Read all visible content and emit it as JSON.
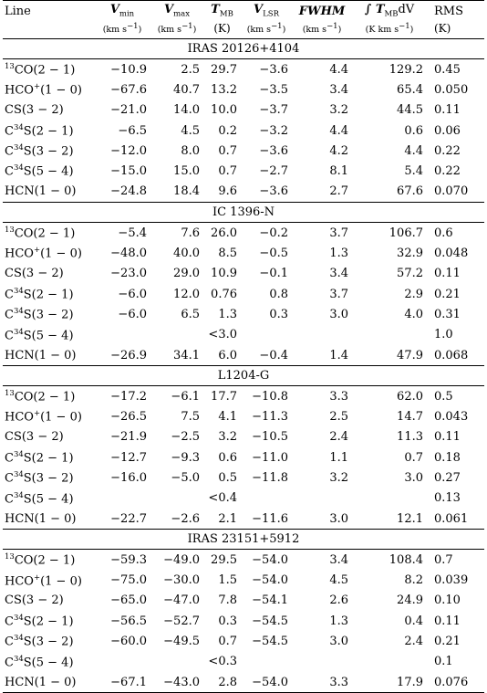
{
  "headers": {
    "line": "Line",
    "vmin_sym": "V",
    "vmin_sub": "min",
    "vmax_sym": "V",
    "vmax_sub": "max",
    "tmb_sym": "T",
    "tmb_sub": "MB",
    "vlsr_sym": "V",
    "vlsr_sub": "LSR",
    "fwhm": "FWHM",
    "integral": "∫ T",
    "integral_sub": "MB",
    "integral_tail": "dV",
    "rms": "RMS"
  },
  "units": {
    "vmin": "(km s",
    "vmax": "(km s",
    "tmb": "(K)",
    "vlsr": "(km s",
    "fwhm": "(km s",
    "integral": "(K km s",
    "rms": "(K)",
    "neg": "−1",
    "close": ")"
  },
  "groups": [
    {
      "name": "IRAS 20126+4104",
      "rows": [
        {
          "pre": "13",
          "mol": "CO(2 − 1)",
          "vmin": "−10.9",
          "vmax": "2.5",
          "tmb": "29.7",
          "vlsr": "−3.6",
          "fwhm": "4.4",
          "int": "129.2",
          "rms": "0.45"
        },
        {
          "pre": "",
          "mol": "HCO",
          "sup": "+",
          "tail": "(1 − 0)",
          "vmin": "−67.6",
          "vmax": "40.7",
          "tmb": "13.2",
          "vlsr": "−3.5",
          "fwhm": "3.4",
          "int": "65.4",
          "rms": "0.050"
        },
        {
          "pre": "",
          "mol": "CS(3 − 2)",
          "vmin": "−21.0",
          "vmax": "14.0",
          "tmb": "10.0",
          "vlsr": "−3.7",
          "fwhm": "3.2",
          "int": "44.5",
          "rms": "0.11"
        },
        {
          "pre": "",
          "mol": "C",
          "sup": "34",
          "tail": "S(2 − 1)",
          "vmin": "−6.5",
          "vmax": "4.5",
          "tmb": "0.2",
          "vlsr": "−3.2",
          "fwhm": "4.4",
          "int": "0.6",
          "rms": "0.06"
        },
        {
          "pre": "",
          "mol": "C",
          "sup": "34",
          "tail": "S(3 − 2)",
          "vmin": "−12.0",
          "vmax": "8.0",
          "tmb": "0.7",
          "vlsr": "−3.6",
          "fwhm": "4.2",
          "int": "4.4",
          "rms": "0.22"
        },
        {
          "pre": "",
          "mol": "C",
          "sup": "34",
          "tail": "S(5 − 4)",
          "vmin": "−15.0",
          "vmax": "15.0",
          "tmb": "0.7",
          "vlsr": "−2.7",
          "fwhm": "8.1",
          "int": "5.4",
          "rms": "0.22"
        },
        {
          "pre": "",
          "mol": "HCN(1 − 0)",
          "vmin": "−24.8",
          "vmax": "18.4",
          "tmb": "9.6",
          "vlsr": "−3.6",
          "fwhm": "2.7",
          "int": "67.6",
          "rms": "0.070"
        }
      ]
    },
    {
      "name": "IC 1396-N",
      "rows": [
        {
          "pre": "13",
          "mol": "CO(2 − 1)",
          "vmin": "−5.4",
          "vmax": "7.6",
          "tmb": "26.0",
          "vlsr": "−0.2",
          "fwhm": "3.7",
          "int": "106.7",
          "rms": "0.6"
        },
        {
          "pre": "",
          "mol": "HCO",
          "sup": "+",
          "tail": "(1 − 0)",
          "vmin": "−48.0",
          "vmax": "40.0",
          "tmb": "8.5",
          "vlsr": "−0.5",
          "fwhm": "1.3",
          "int": "32.9",
          "rms": "0.048"
        },
        {
          "pre": "",
          "mol": "CS(3 − 2)",
          "vmin": "−23.0",
          "vmax": "29.0",
          "tmb": "10.9",
          "vlsr": "−0.1",
          "fwhm": "3.4",
          "int": "57.2",
          "rms": "0.11"
        },
        {
          "pre": "",
          "mol": "C",
          "sup": "34",
          "tail": "S(2 − 1)",
          "vmin": "−6.0",
          "vmax": "12.0",
          "tmb": "0.76",
          "vlsr": "0.8",
          "fwhm": "3.7",
          "int": "2.9",
          "rms": "0.21"
        },
        {
          "pre": "",
          "mol": "C",
          "sup": "34",
          "tail": "S(3 − 2)",
          "vmin": "−6.0",
          "vmax": "6.5",
          "tmb": "1.3",
          "vlsr": "0.3",
          "fwhm": "3.0",
          "int": "4.0",
          "rms": "0.31"
        },
        {
          "pre": "",
          "mol": "C",
          "sup": "34",
          "tail": "S(5 − 4)",
          "vmin": "",
          "vmax": "",
          "tmb": "<3.0",
          "vlsr": "",
          "fwhm": "",
          "int": "",
          "rms": "1.0"
        },
        {
          "pre": "",
          "mol": "HCN(1 − 0)",
          "vmin": "−26.9",
          "vmax": "34.1",
          "tmb": "6.0",
          "vlsr": "−0.4",
          "fwhm": "1.4",
          "int": "47.9",
          "rms": "0.068"
        }
      ]
    },
    {
      "name": "L1204-G",
      "rows": [
        {
          "pre": "13",
          "mol": "CO(2 − 1)",
          "vmin": "−17.2",
          "vmax": "−6.1",
          "tmb": "17.7",
          "vlsr": "−10.8",
          "fwhm": "3.3",
          "int": "62.0",
          "rms": "0.5"
        },
        {
          "pre": "",
          "mol": "HCO",
          "sup": "+",
          "tail": "(1 − 0)",
          "vmin": "−26.5",
          "vmax": "7.5",
          "tmb": "4.1",
          "vlsr": "−11.3",
          "fwhm": "2.5",
          "int": "14.7",
          "rms": "0.043"
        },
        {
          "pre": "",
          "mol": "CS(3 − 2)",
          "vmin": "−21.9",
          "vmax": "−2.5",
          "tmb": "3.2",
          "vlsr": "−10.5",
          "fwhm": "2.4",
          "int": "11.3",
          "rms": "0.11"
        },
        {
          "pre": "",
          "mol": "C",
          "sup": "34",
          "tail": "S(2 − 1)",
          "vmin": "−12.7",
          "vmax": "−9.3",
          "tmb": "0.6",
          "vlsr": "−11.0",
          "fwhm": "1.1",
          "int": "0.7",
          "rms": "0.18"
        },
        {
          "pre": "",
          "mol": "C",
          "sup": "34",
          "tail": "S(3 − 2)",
          "vmin": "−16.0",
          "vmax": "−5.0",
          "tmb": "0.5",
          "vlsr": "−11.8",
          "fwhm": "3.2",
          "int": "3.0",
          "rms": "0.27"
        },
        {
          "pre": "",
          "mol": "C",
          "sup": "34",
          "tail": "S(5 − 4)",
          "vmin": "",
          "vmax": "",
          "tmb": "<0.4",
          "vlsr": "",
          "fwhm": "",
          "int": "",
          "rms": "0.13"
        },
        {
          "pre": "",
          "mol": "HCN(1 − 0)",
          "vmin": "−22.7",
          "vmax": "−2.6",
          "tmb": "2.1",
          "vlsr": "−11.6",
          "fwhm": "3.0",
          "int": "12.1",
          "rms": "0.061"
        }
      ]
    },
    {
      "name": "IRAS 23151+5912",
      "rows": [
        {
          "pre": "13",
          "mol": "CO(2 − 1)",
          "vmin": "−59.3",
          "vmax": "−49.0",
          "tmb": "29.5",
          "vlsr": "−54.0",
          "fwhm": "3.4",
          "int": "108.4",
          "rms": "0.7"
        },
        {
          "pre": "",
          "mol": "HCO",
          "sup": "+",
          "tail": "(1 − 0)",
          "vmin": "−75.0",
          "vmax": "−30.0",
          "tmb": "1.5",
          "vlsr": "−54.0",
          "fwhm": "4.5",
          "int": "8.2",
          "rms": "0.039"
        },
        {
          "pre": "",
          "mol": "CS(3 − 2)",
          "vmin": "−65.0",
          "vmax": "−47.0",
          "tmb": "7.8",
          "vlsr": "−54.1",
          "fwhm": "2.6",
          "int": "24.9",
          "rms": "0.10"
        },
        {
          "pre": "",
          "mol": "C",
          "sup": "34",
          "tail": "S(2 − 1)",
          "vmin": "−56.5",
          "vmax": "−52.7",
          "tmb": "0.3",
          "vlsr": "−54.5",
          "fwhm": "1.3",
          "int": "0.4",
          "rms": "0.11"
        },
        {
          "pre": "",
          "mol": "C",
          "sup": "34",
          "tail": "S(3 − 2)",
          "vmin": "−60.0",
          "vmax": "−49.5",
          "tmb": "0.7",
          "vlsr": "−54.5",
          "fwhm": "3.0",
          "int": "2.4",
          "rms": "0.21"
        },
        {
          "pre": "",
          "mol": "C",
          "sup": "34",
          "tail": "S(5 − 4)",
          "vmin": "",
          "vmax": "",
          "tmb": "<0.3",
          "vlsr": "",
          "fwhm": "",
          "int": "",
          "rms": "0.1"
        },
        {
          "pre": "",
          "mol": "HCN(1 − 0)",
          "vmin": "−67.1",
          "vmax": "−43.0",
          "tmb": "2.8",
          "vlsr": "−54.0",
          "fwhm": "3.3",
          "int": "17.9",
          "rms": "0.076"
        }
      ]
    }
  ]
}
